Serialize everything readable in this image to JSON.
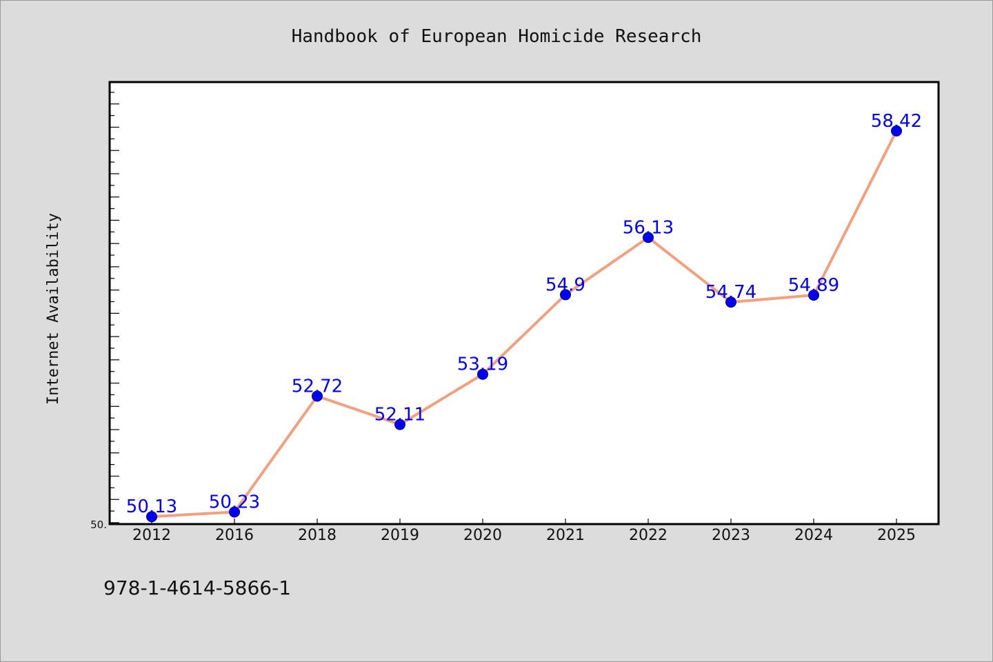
{
  "chart_data": {
    "type": "line",
    "title": "Handbook of European Homicide Research",
    "xlabel": "",
    "ylabel": "Internet Availability",
    "categories": [
      "2012",
      "2016",
      "2018",
      "2019",
      "2020",
      "2021",
      "2022",
      "2023",
      "2024",
      "2025"
    ],
    "series": [
      {
        "values": [
          50.13,
          50.23,
          52.72,
          52.11,
          53.19,
          54.9,
          56.13,
          54.74,
          54.89,
          58.42
        ],
        "data_labels": [
          "50.13",
          "50.23",
          "52.72",
          "52.11",
          "53.19",
          "54.9",
          "56.13",
          "54.74",
          "54.89",
          "58.42"
        ]
      }
    ],
    "ylim": [
      49.97,
      59.47
    ],
    "y_tick_label": "50.",
    "grid": false,
    "legend": "none"
  },
  "colors": {
    "line": "#f4a07f",
    "marker": "#0000ee",
    "marker_edge": "#00008b",
    "data_label": "#0000ff",
    "background": "#dcdcdc",
    "plot_area": "#ffffff"
  },
  "footer": {
    "isbn": "978-1-4614-5866-1"
  }
}
